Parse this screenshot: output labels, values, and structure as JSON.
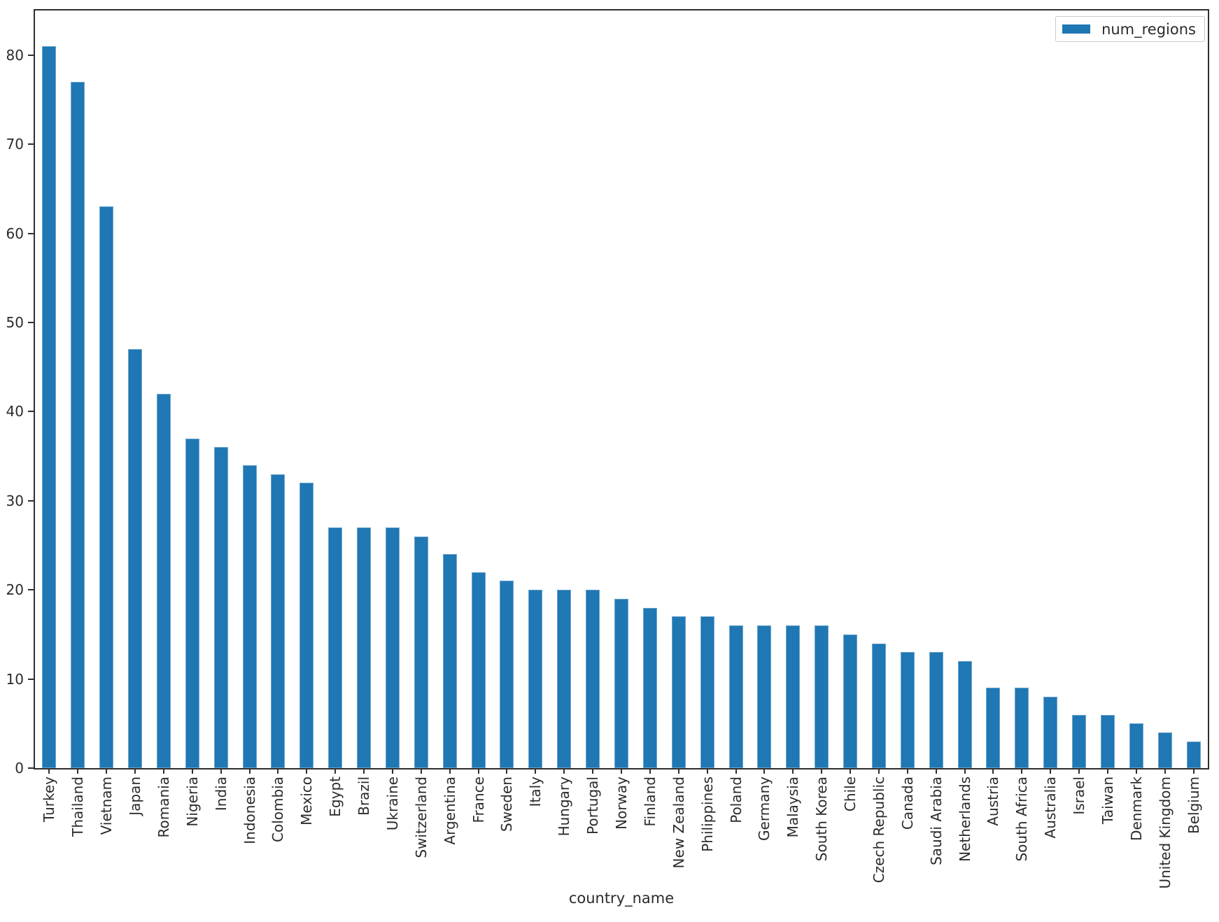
{
  "chart_data": {
    "type": "bar",
    "title": "",
    "xlabel": "country_name",
    "ylabel": "",
    "legend": {
      "position": "upper right",
      "entries": [
        "num_regions"
      ]
    },
    "series_name": "num_regions",
    "categories": [
      "Turkey",
      "Thailand",
      "Vietnam",
      "Japan",
      "Romania",
      "Nigeria",
      "India",
      "Indonesia",
      "Colombia",
      "Mexico",
      "Egypt",
      "Brazil",
      "Ukraine",
      "Switzerland",
      "Argentina",
      "France",
      "Sweden",
      "Italy",
      "Hungary",
      "Portugal",
      "Norway",
      "Finland",
      "New Zealand",
      "Philippines",
      "Poland",
      "Germany",
      "Malaysia",
      "South Korea",
      "Chile",
      "Czech Republic",
      "Canada",
      "Saudi Arabia",
      "Netherlands",
      "Austria",
      "South Africa",
      "Australia",
      "Israel",
      "Taiwan",
      "Denmark",
      "United Kingdom",
      "Belgium"
    ],
    "values": [
      81,
      77,
      63,
      47,
      42,
      37,
      36,
      34,
      33,
      32,
      27,
      27,
      27,
      26,
      24,
      22,
      21,
      20,
      20,
      20,
      19,
      18,
      17,
      17,
      16,
      16,
      16,
      16,
      15,
      14,
      13,
      13,
      12,
      9,
      9,
      8,
      6,
      6,
      5,
      4,
      3
    ],
    "y_ticks": [
      0,
      10,
      20,
      30,
      40,
      50,
      60,
      70,
      80
    ],
    "ylim": [
      0,
      85
    ],
    "grid": false,
    "bar_color": "#1f77b4",
    "x_tick_rotation": 90
  },
  "colors": {
    "bar": "#1f77b4",
    "spine": "#2e2e2e",
    "text": "#2b2b2b",
    "legend_border": "#c9c9c9"
  }
}
